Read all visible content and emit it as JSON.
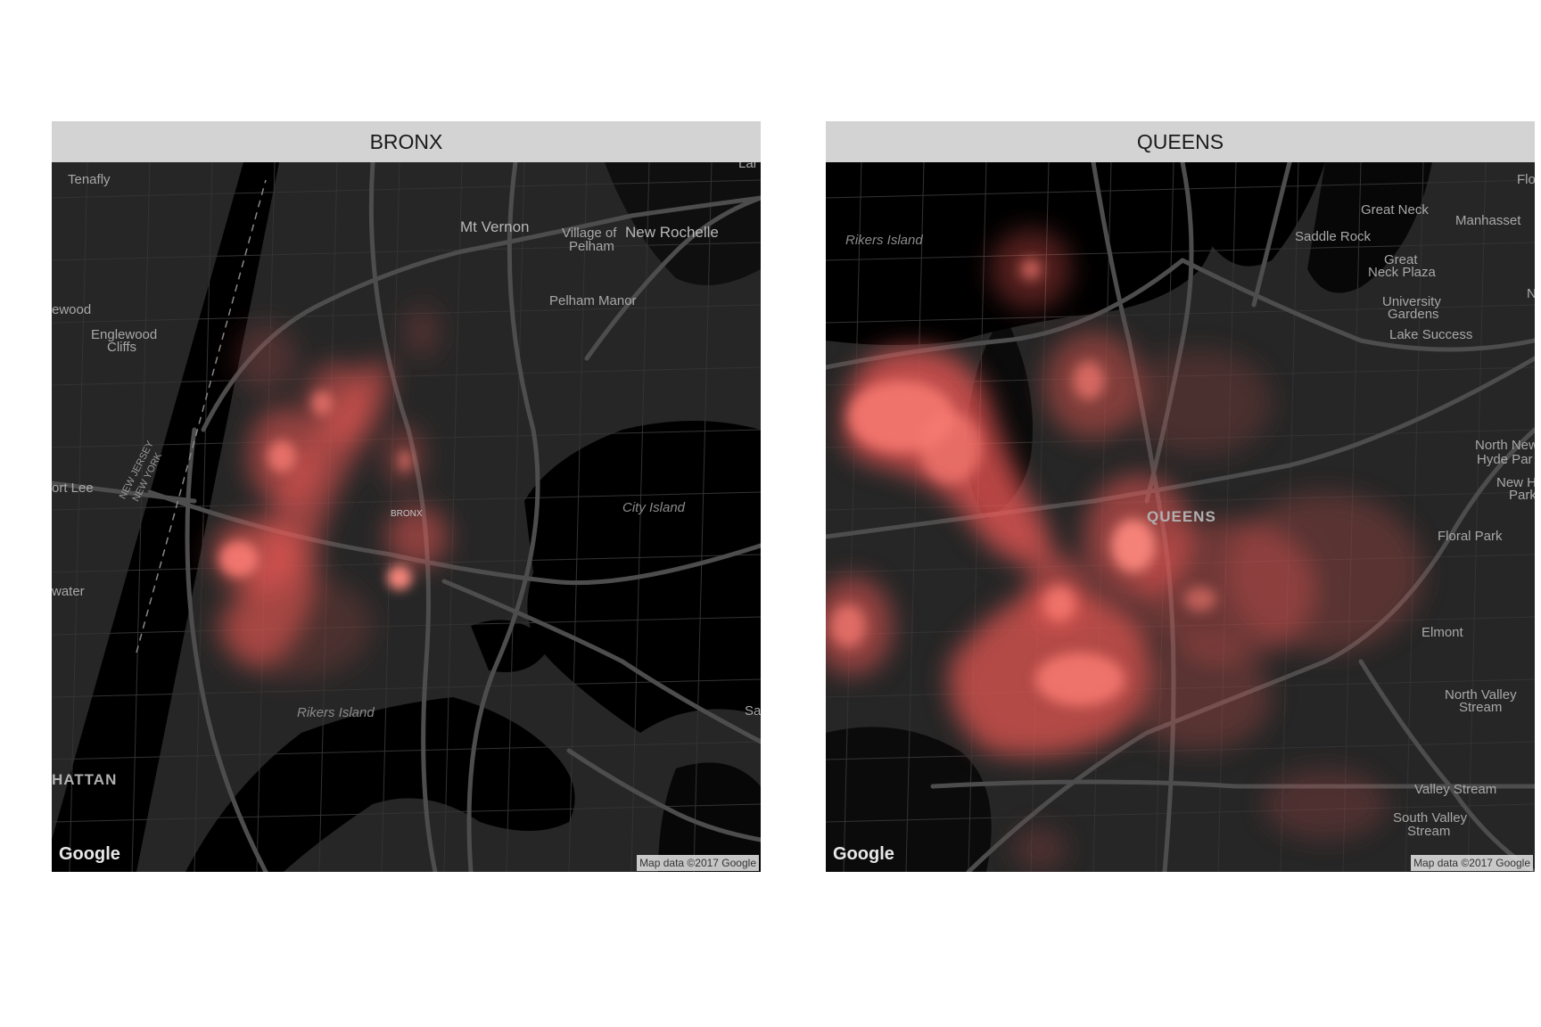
{
  "panels": {
    "bronx": {
      "title": "BRONX",
      "labels": {
        "tenafly": "Tenafly",
        "mt_vernon": "Mt Vernon",
        "village_of": "Village of",
        "pelham": "Pelham",
        "new_rochelle": "New Rochelle",
        "pelham_manor": "Pelham Manor",
        "ewood": "ewood",
        "englewood": "Englewood",
        "cliffs": "Cliffs",
        "ort_lee": "ort Lee",
        "new_jersey": "NEW JERSEY",
        "new_york": "NEW YORK",
        "bronx": "BRONX",
        "city_island": "City Island",
        "water": "water",
        "rikers_island": "Rikers Island",
        "hattan": "HATTAN",
        "sa": "Sa",
        "lar": "Lar"
      },
      "google": "Google",
      "credit": "Map data ©2017 Google"
    },
    "queens": {
      "title": "QUEENS",
      "labels": {
        "rikers_island": "Rikers Island",
        "great_neck": "Great Neck",
        "manhasset": "Manhasset",
        "flo": "Flo",
        "saddle_rock": "Saddle Rock",
        "great": "Great",
        "neck_plaza": "Neck Plaza",
        "university": "University",
        "gardens": "Gardens",
        "n": "N",
        "lake_success": "Lake Success",
        "north_new": "North New",
        "hyde_par": "Hyde Par",
        "new_h": "New H",
        "park": "Park",
        "queens": "QUEENS",
        "floral_park": "Floral Park",
        "elmont": "Elmont",
        "north_valley": "North Valley",
        "stream": "Stream",
        "valley_stream": "Valley Stream",
        "south_valley": "South Valley",
        "stream2": "Stream"
      },
      "google": "Google",
      "credit": "Map data ©2017 Google"
    }
  },
  "colors": {
    "heat": "#f05a55",
    "water": "#000000",
    "land": "#262626",
    "road": "#4a4a4a"
  }
}
